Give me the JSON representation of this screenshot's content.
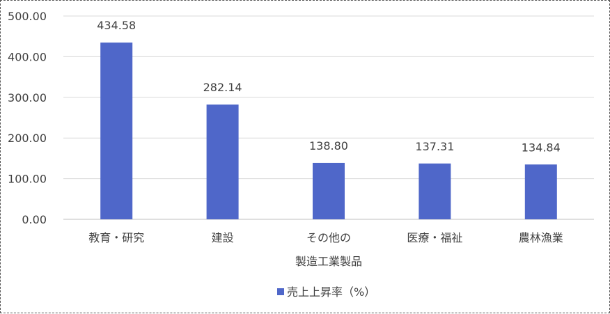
{
  "chart_data": {
    "type": "bar",
    "title": "",
    "xlabel": "",
    "ylabel": "",
    "categories": [
      [
        "教育・研究"
      ],
      [
        "建設"
      ],
      [
        "その他の",
        "製造工業製品"
      ],
      [
        "医療・福祉"
      ],
      [
        "農林漁業"
      ]
    ],
    "series": [
      {
        "name": "売上上昇率（%）",
        "values": [
          434.58,
          282.14,
          138.8,
          137.31,
          134.84
        ],
        "value_labels": [
          "434.58",
          "282.14",
          "138.80",
          "137.31",
          "134.84"
        ],
        "color": "#4F67C9"
      }
    ],
    "ylim": [
      0,
      500
    ],
    "y_ticks": [
      "0.00",
      "100.00",
      "200.00",
      "300.00",
      "400.00",
      "500.00"
    ],
    "grid": true,
    "legend_position": "bottom"
  },
  "colors": {
    "grid": "#D9D9D9",
    "axis": "#BFBFBF",
    "text": "#404040"
  }
}
